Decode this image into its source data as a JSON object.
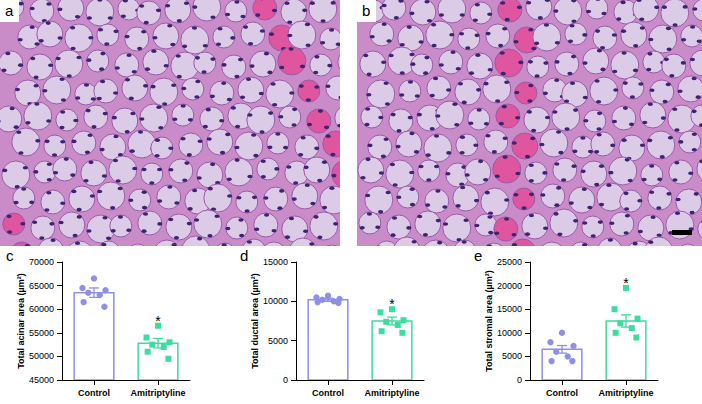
{
  "images": [
    {
      "panel_label": "a"
    },
    {
      "panel_label": "b"
    }
  ],
  "chart_data": [
    {
      "type": "bar",
      "panel_label": "c",
      "y_label": "Total acinar area (µm²)",
      "categories": [
        "Control",
        "Amitriptyline"
      ],
      "values": [
        63500,
        52800
      ],
      "errors": [
        1000,
        1000
      ],
      "points": [
        [
          66500,
          64500,
          64000,
          63500,
          63000,
          61500,
          60500
        ],
        [
          56500,
          54000,
          53000,
          52500,
          52000,
          51000,
          49500
        ]
      ],
      "colors": [
        "#8f8fe6",
        "#3ddc9f"
      ],
      "markers": [
        "circle",
        "square"
      ],
      "ylim": [
        45000,
        70000
      ],
      "yticks": [
        45000,
        50000,
        55000,
        60000,
        65000,
        70000
      ],
      "grid": false,
      "annotations": [
        {
          "text": "*",
          "category": "Amitriptyline",
          "y": 57500
        }
      ]
    },
    {
      "type": "bar",
      "panel_label": "d",
      "y_label": "Total ductal area (µm²)",
      "categories": [
        "Control",
        "Amitriptyline"
      ],
      "values": [
        10200,
        7500
      ],
      "errors": [
        200,
        500
      ],
      "points": [
        [
          10700,
          10500,
          10300,
          10200,
          10000,
          9900,
          9800
        ],
        [
          9000,
          8600,
          7600,
          7400,
          7000,
          6200,
          6000
        ]
      ],
      "colors": [
        "#8f8fe6",
        "#3ddc9f"
      ],
      "markers": [
        "circle",
        "square"
      ],
      "ylim": [
        0,
        15000
      ],
      "yticks": [
        0,
        5000,
        10000,
        15000
      ],
      "grid": false,
      "annotations": [
        {
          "text": "*",
          "category": "Amitriptyline",
          "y": 9600
        }
      ]
    },
    {
      "type": "bar",
      "panel_label": "e",
      "y_label": "Total stromal area (µm²)",
      "categories": [
        "Control",
        "Amitriptyline"
      ],
      "values": [
        6500,
        12500
      ],
      "errors": [
        800,
        1300
      ],
      "points": [
        [
          10000,
          8000,
          7200,
          6000,
          5000,
          4000,
          4000
        ],
        [
          19500,
          15000,
          13000,
          12000,
          11000,
          10000,
          9000
        ]
      ],
      "colors": [
        "#8f8fe6",
        "#3ddc9f"
      ],
      "markers": [
        "circle",
        "square"
      ],
      "ylim": [
        0,
        25000
      ],
      "yticks": [
        0,
        5000,
        10000,
        15000,
        20000,
        25000
      ],
      "grid": false,
      "annotations": [
        {
          "text": "*",
          "category": "Amitriptyline",
          "y": 20500
        }
      ]
    }
  ]
}
